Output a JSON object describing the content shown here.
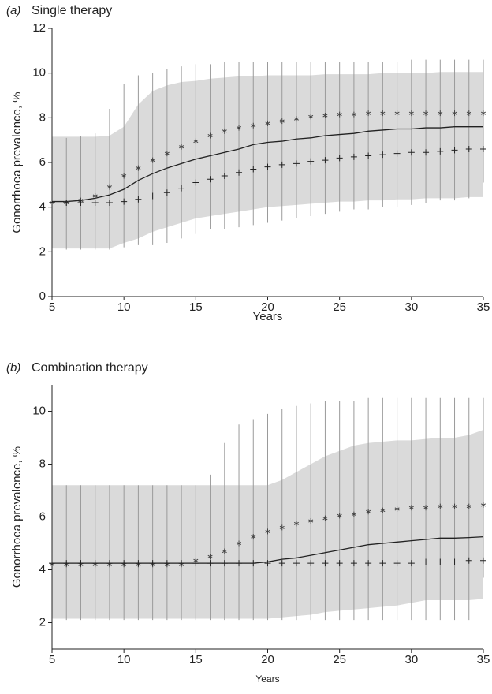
{
  "chart_data": [
    {
      "type": "line",
      "panel_label": "(a)",
      "title": "Single therapy",
      "x_label": "Years",
      "y_label": "Gonorrhoea prevalence, %",
      "x": [
        5,
        6,
        7,
        8,
        9,
        10,
        11,
        12,
        13,
        14,
        15,
        16,
        17,
        18,
        19,
        20,
        21,
        22,
        23,
        24,
        25,
        26,
        27,
        28,
        29,
        30,
        31,
        32,
        33,
        34,
        35
      ],
      "xlim": [
        5,
        35
      ],
      "xticks": [
        5,
        10,
        15,
        20,
        25,
        30,
        35
      ],
      "ylim": [
        0,
        12
      ],
      "yticks": [
        0,
        2,
        4,
        6,
        8,
        10,
        12
      ],
      "band": {
        "color": "#dadada",
        "lower": [
          2.15,
          2.15,
          2.15,
          2.15,
          2.15,
          2.4,
          2.6,
          2.9,
          3.1,
          3.3,
          3.5,
          3.6,
          3.7,
          3.8,
          3.9,
          4.0,
          4.05,
          4.1,
          4.15,
          4.2,
          4.25,
          4.25,
          4.3,
          4.3,
          4.35,
          4.35,
          4.4,
          4.4,
          4.4,
          4.45,
          4.45
        ],
        "upper": [
          7.15,
          7.15,
          7.15,
          7.15,
          7.2,
          7.6,
          8.6,
          9.2,
          9.45,
          9.6,
          9.65,
          9.75,
          9.8,
          9.85,
          9.85,
          9.9,
          9.9,
          9.9,
          9.9,
          9.95,
          9.95,
          9.95,
          9.95,
          10.0,
          10.0,
          10.0,
          10.0,
          10.05,
          10.05,
          10.05,
          10.05
        ]
      },
      "ranges": {
        "color": "#9a9a9a",
        "lower": [
          2.1,
          2.1,
          2.1,
          2.1,
          2.1,
          2.2,
          2.3,
          2.3,
          2.4,
          2.6,
          2.8,
          3.0,
          3.0,
          3.1,
          3.2,
          3.3,
          3.4,
          3.5,
          3.6,
          3.7,
          3.8,
          3.9,
          3.9,
          4.0,
          4.0,
          4.1,
          4.2,
          4.3,
          4.3,
          4.4,
          5.1
        ],
        "upper": [
          7.1,
          7.1,
          7.2,
          7.3,
          8.4,
          9.5,
          9.9,
          10.0,
          10.2,
          10.3,
          10.4,
          10.4,
          10.5,
          10.5,
          10.5,
          10.5,
          10.5,
          10.5,
          10.5,
          10.5,
          10.5,
          10.5,
          10.5,
          10.5,
          10.5,
          10.6,
          10.6,
          10.6,
          10.6,
          10.6,
          10.6
        ]
      },
      "series": [
        {
          "marker": "line",
          "color": "#222222",
          "values": [
            4.25,
            4.25,
            4.3,
            4.4,
            4.55,
            4.8,
            5.2,
            5.5,
            5.75,
            5.95,
            6.15,
            6.3,
            6.45,
            6.6,
            6.8,
            6.9,
            6.95,
            7.05,
            7.1,
            7.2,
            7.25,
            7.3,
            7.4,
            7.45,
            7.5,
            7.5,
            7.55,
            7.55,
            7.6,
            7.6,
            7.6
          ]
        },
        {
          "marker": "asterisk",
          "color": "#444444",
          "values": [
            4.2,
            4.2,
            4.3,
            4.5,
            4.9,
            5.4,
            5.75,
            6.1,
            6.4,
            6.7,
            6.95,
            7.2,
            7.4,
            7.55,
            7.65,
            7.75,
            7.85,
            7.95,
            8.05,
            8.1,
            8.15,
            8.15,
            8.2,
            8.2,
            8.2,
            8.2,
            8.2,
            8.2,
            8.2,
            8.2,
            8.2
          ]
        },
        {
          "marker": "plus",
          "color": "#222222",
          "values": [
            4.2,
            4.2,
            4.2,
            4.2,
            4.2,
            4.25,
            4.35,
            4.5,
            4.65,
            4.85,
            5.1,
            5.25,
            5.4,
            5.55,
            5.7,
            5.8,
            5.9,
            5.95,
            6.05,
            6.1,
            6.2,
            6.25,
            6.3,
            6.35,
            6.4,
            6.45,
            6.45,
            6.5,
            6.55,
            6.6,
            6.6
          ]
        }
      ]
    },
    {
      "type": "line",
      "panel_label": "(b)",
      "title": "Combination therapy",
      "x_label": "Years",
      "y_label": "Gonorrhoea prevalence, %",
      "x": [
        5,
        6,
        7,
        8,
        9,
        10,
        11,
        12,
        13,
        14,
        15,
        16,
        17,
        18,
        19,
        20,
        21,
        22,
        23,
        24,
        25,
        26,
        27,
        28,
        29,
        30,
        31,
        32,
        33,
        34,
        35
      ],
      "xlim": [
        5,
        35
      ],
      "xticks": [
        5,
        10,
        15,
        20,
        25,
        30,
        35
      ],
      "ylim": [
        1,
        11
      ],
      "yticks": [
        2,
        4,
        6,
        8,
        10
      ],
      "band": {
        "color": "#dadada",
        "lower": [
          2.15,
          2.15,
          2.15,
          2.15,
          2.15,
          2.15,
          2.15,
          2.15,
          2.15,
          2.15,
          2.15,
          2.15,
          2.15,
          2.15,
          2.15,
          2.15,
          2.2,
          2.25,
          2.3,
          2.4,
          2.45,
          2.5,
          2.55,
          2.6,
          2.65,
          2.75,
          2.85,
          2.85,
          2.85,
          2.85,
          2.9
        ],
        "upper": [
          7.2,
          7.2,
          7.2,
          7.2,
          7.2,
          7.2,
          7.2,
          7.2,
          7.2,
          7.2,
          7.2,
          7.2,
          7.2,
          7.2,
          7.2,
          7.2,
          7.4,
          7.7,
          8.0,
          8.3,
          8.5,
          8.7,
          8.8,
          8.85,
          8.9,
          8.9,
          8.95,
          9.0,
          9.0,
          9.1,
          9.3
        ]
      },
      "ranges": {
        "color": "#9a9a9a",
        "lower": [
          2.1,
          2.1,
          2.1,
          2.1,
          2.1,
          2.1,
          2.1,
          2.1,
          2.1,
          2.1,
          2.1,
          2.1,
          2.1,
          2.1,
          2.1,
          2.1,
          2.1,
          2.1,
          2.1,
          2.1,
          2.1,
          2.1,
          2.1,
          2.1,
          2.1,
          2.1,
          2.1,
          2.1,
          2.1,
          2.1,
          3.7
        ],
        "upper": [
          7.2,
          7.2,
          7.2,
          7.2,
          7.2,
          7.2,
          7.2,
          7.2,
          7.2,
          7.2,
          7.2,
          7.6,
          8.8,
          9.5,
          9.7,
          9.9,
          10.1,
          10.2,
          10.3,
          10.4,
          10.4,
          10.4,
          10.5,
          10.5,
          10.5,
          10.5,
          10.5,
          10.5,
          10.5,
          10.5,
          10.5
        ]
      },
      "series": [
        {
          "marker": "line",
          "color": "#222222",
          "values": [
            4.25,
            4.25,
            4.25,
            4.25,
            4.25,
            4.25,
            4.25,
            4.25,
            4.25,
            4.25,
            4.25,
            4.25,
            4.25,
            4.25,
            4.25,
            4.3,
            4.4,
            4.45,
            4.55,
            4.65,
            4.75,
            4.85,
            4.95,
            5.0,
            5.05,
            5.1,
            5.15,
            5.2,
            5.2,
            5.22,
            5.25
          ]
        },
        {
          "marker": "asterisk",
          "color": "#444444",
          "values": [
            4.2,
            4.2,
            4.2,
            4.2,
            4.2,
            4.2,
            4.2,
            4.2,
            4.2,
            4.2,
            4.35,
            4.5,
            4.7,
            5.0,
            5.25,
            5.45,
            5.6,
            5.75,
            5.85,
            5.95,
            6.05,
            6.1,
            6.2,
            6.25,
            6.3,
            6.35,
            6.35,
            6.4,
            6.4,
            6.4,
            6.45
          ]
        },
        {
          "marker": "plus",
          "color": "#222222",
          "values": [
            4.25,
            4.25,
            4.25,
            4.25,
            4.25,
            4.25,
            4.25,
            4.25,
            4.25,
            4.25,
            4.25,
            4.25,
            4.25,
            4.25,
            4.25,
            4.25,
            4.25,
            4.25,
            4.25,
            4.25,
            4.25,
            4.25,
            4.25,
            4.25,
            4.25,
            4.25,
            4.3,
            4.3,
            4.3,
            4.35,
            4.35
          ]
        }
      ]
    }
  ]
}
